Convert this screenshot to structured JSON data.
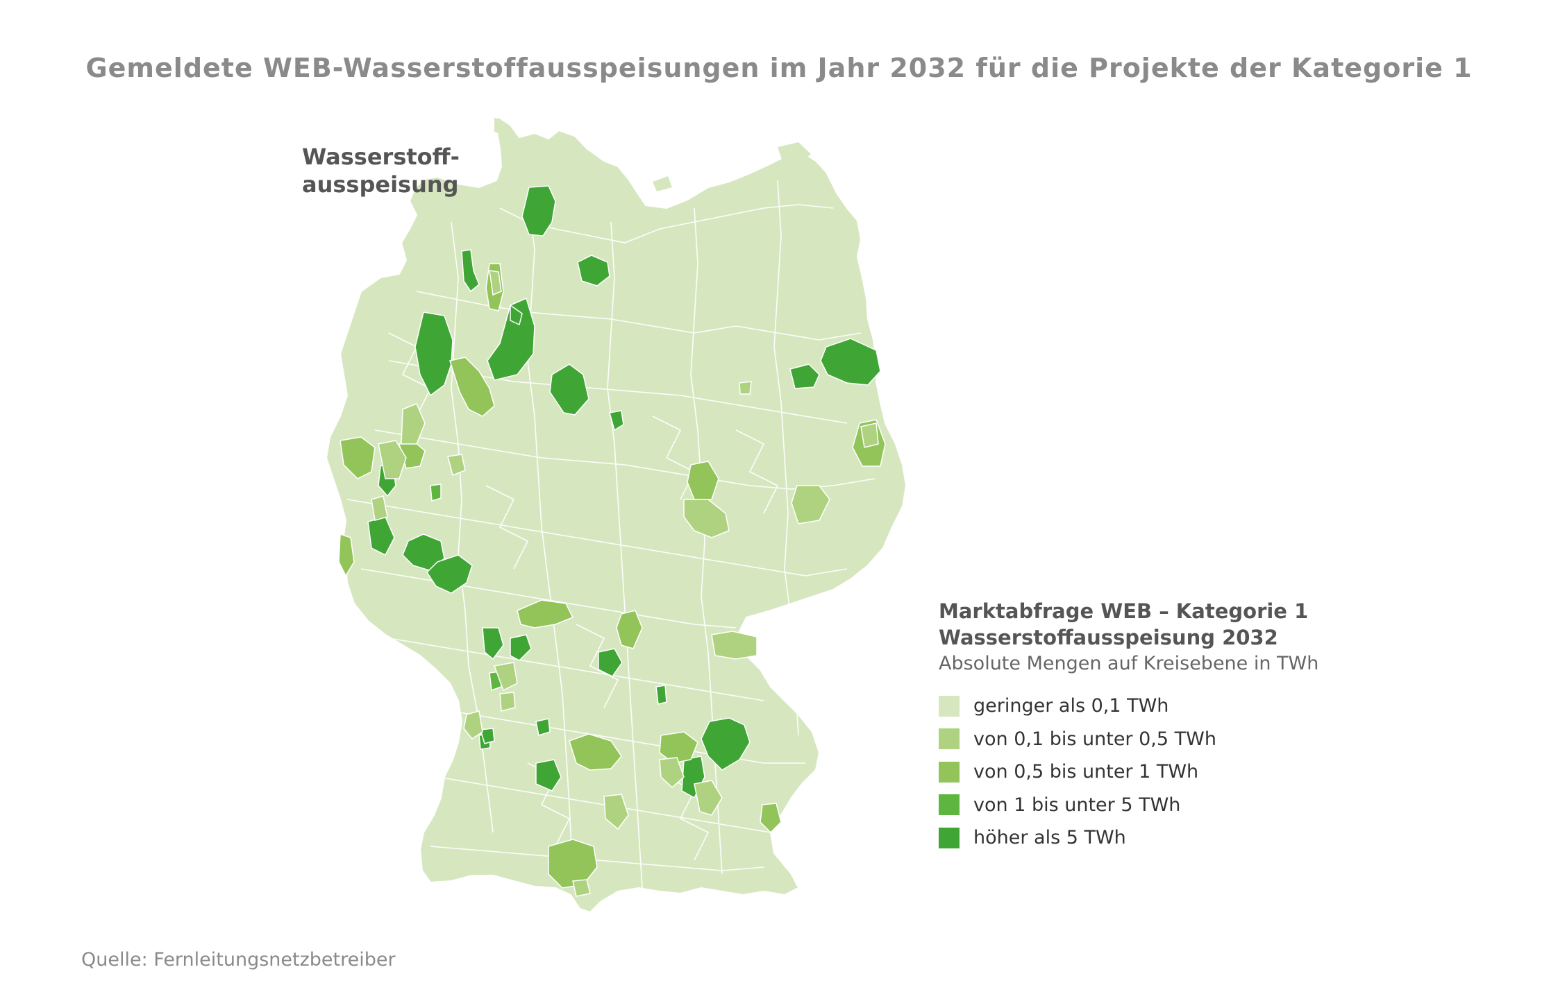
{
  "title": "Gemeldete WEB-Wasserstoffausspeisungen im Jahr 2032 für die Projekte der Kategorie 1",
  "map_label": {
    "line1": "Wasserstoff-",
    "line2": "ausspeisung"
  },
  "legend": {
    "title_line1": "Marktabfrage WEB – Kategorie 1",
    "title_line2": "Wasserstoffausspeisung 2032",
    "subtitle": "Absolute Mengen auf Kreisebene in TWh",
    "items": [
      {
        "label": "geringer als 0,1 TWh",
        "color": "#d6e7c0"
      },
      {
        "label": "von 0,1 bis unter 0,5 TWh",
        "color": "#aed27f"
      },
      {
        "label": "von 0,5 bis unter 1 TWh",
        "color": "#92c45a"
      },
      {
        "label": "von 1 bis unter 5 TWh",
        "color": "#5eb53f"
      },
      {
        "label": "höher als 5 TWh",
        "color": "#3fa535"
      }
    ]
  },
  "source": "Quelle: Fernleitungsnetzbetreiber",
  "colors": {
    "base": "#d6e7c0",
    "border": "#ffffff",
    "cls1": "#aed27f",
    "cls2": "#92c45a",
    "cls3": "#5eb53f",
    "cls4": "#3fa535"
  }
}
